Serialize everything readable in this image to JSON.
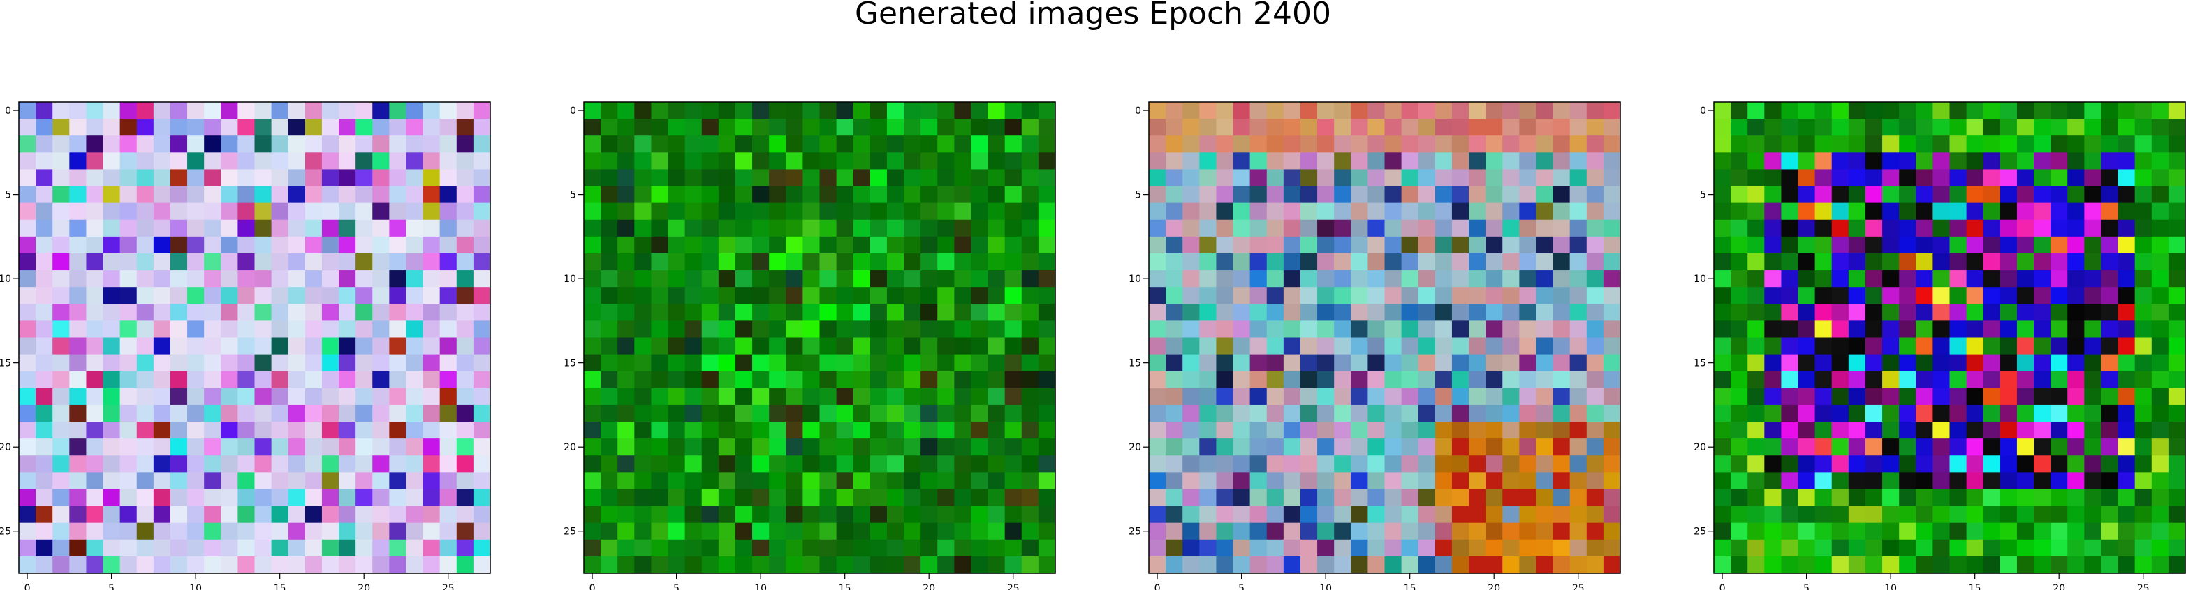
{
  "figure": {
    "title": "Generated images Epoch 2400"
  },
  "chart_data": [
    {
      "type": "heatmap",
      "title": "",
      "xlabel": "",
      "ylabel": "",
      "grid_size": [
        28,
        28
      ],
      "xticks": [
        0,
        5,
        10,
        15,
        20,
        25
      ],
      "yticks": [
        0,
        5,
        10,
        15,
        20,
        25
      ],
      "grid": false,
      "palette": "pastel-mixed",
      "dominant_colors": [
        "#d8d8f0",
        "#c0c8ec",
        "#9fd7e8",
        "#7f5cd0",
        "#e8e8ff"
      ]
    },
    {
      "type": "heatmap",
      "title": "",
      "xlabel": "",
      "ylabel": "",
      "grid_size": [
        28,
        28
      ],
      "xticks": [
        0,
        5,
        10,
        15,
        20,
        25
      ],
      "yticks": [
        0,
        5,
        10,
        15,
        20,
        25
      ],
      "grid": false,
      "palette": "green",
      "dominant_colors": [
        "#0a6e0a",
        "#1a8c1a",
        "#0d4f0d",
        "#30c030",
        "#004000"
      ]
    },
    {
      "type": "heatmap",
      "title": "",
      "xlabel": "",
      "ylabel": "",
      "grid_size": [
        28,
        28
      ],
      "xticks": [
        0,
        5,
        10,
        15,
        20,
        25
      ],
      "yticks": [
        0,
        5,
        10,
        15,
        20,
        25
      ],
      "grid": false,
      "palette": "muted-pink-blue-orange",
      "dominant_colors": [
        "#b49ab4",
        "#8eaad0",
        "#d08a8a",
        "#c07a20",
        "#203060"
      ]
    },
    {
      "type": "heatmap",
      "title": "",
      "xlabel": "",
      "ylabel": "",
      "grid_size": [
        28,
        28
      ],
      "xticks": [
        0,
        5,
        10,
        15,
        20,
        25
      ],
      "yticks": [
        0,
        5,
        10,
        15,
        20,
        25
      ],
      "grid": false,
      "palette": "green-border-purple-center",
      "dominant_colors": [
        "#0a8a0a",
        "#1010c0",
        "#6a0a6a",
        "#000000",
        "#30e030"
      ]
    }
  ]
}
